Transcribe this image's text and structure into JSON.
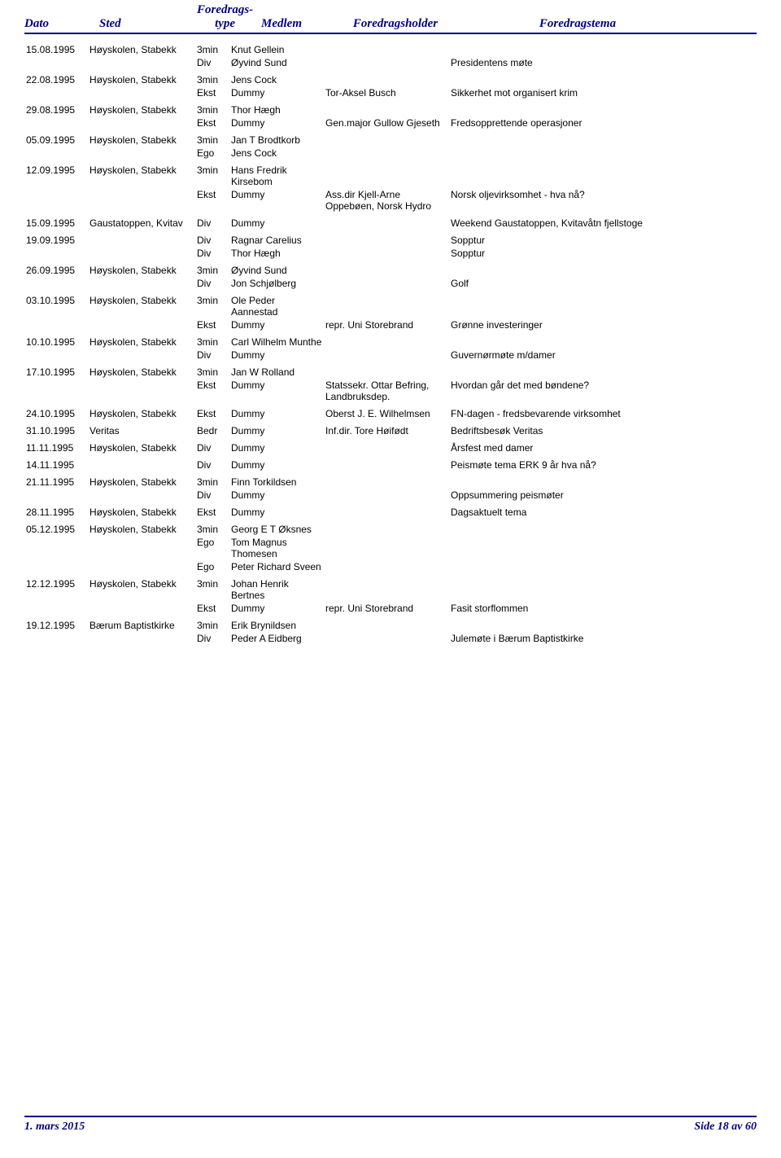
{
  "header": {
    "dato": "Dato",
    "sted": "Sted",
    "type_line1": "Foredrags-",
    "type_line2": "type",
    "medlem": "Medlem",
    "holder": "Foredragsholder",
    "tema": "Foredragstema"
  },
  "rows": [
    {
      "group": true,
      "dato": "15.08.1995",
      "sted": "Høyskolen, Stabekk",
      "type": "3min",
      "medlem": "Knut Gellein",
      "holder": "",
      "tema": ""
    },
    {
      "dato": "",
      "sted": "",
      "type": "Div",
      "medlem": "Øyvind Sund",
      "holder": "",
      "tema": "Presidentens møte"
    },
    {
      "group": true,
      "dato": "22.08.1995",
      "sted": "Høyskolen, Stabekk",
      "type": "3min",
      "medlem": "Jens Cock",
      "holder": "",
      "tema": ""
    },
    {
      "dato": "",
      "sted": "",
      "type": "Ekst",
      "medlem": "Dummy",
      "holder": "Tor-Aksel Busch",
      "tema": "Sikkerhet mot organisert krim"
    },
    {
      "group": true,
      "dato": "29.08.1995",
      "sted": "Høyskolen, Stabekk",
      "type": "3min",
      "medlem": "Thor Hægh",
      "holder": "",
      "tema": ""
    },
    {
      "dato": "",
      "sted": "",
      "type": "Ekst",
      "medlem": "Dummy",
      "holder": "Gen.major Gullow Gjeseth",
      "tema": "Fredsopprettende operasjoner"
    },
    {
      "group": true,
      "dato": "05.09.1995",
      "sted": "Høyskolen, Stabekk",
      "type": "3min",
      "medlem": "Jan T Brodtkorb",
      "holder": "",
      "tema": ""
    },
    {
      "dato": "",
      "sted": "",
      "type": "Ego",
      "medlem": "Jens Cock",
      "holder": "",
      "tema": ""
    },
    {
      "group": true,
      "dato": "12.09.1995",
      "sted": "Høyskolen, Stabekk",
      "type": "3min",
      "medlem": "Hans Fredrik Kirsebom",
      "holder": "",
      "tema": ""
    },
    {
      "dato": "",
      "sted": "",
      "type": "Ekst",
      "medlem": "Dummy",
      "holder": "Ass.dir Kjell-Arne Oppebøen, Norsk Hydro",
      "tema": "Norsk oljevirksomhet - hva nå?"
    },
    {
      "group": true,
      "dato": "15.09.1995",
      "sted": "Gaustatoppen, Kvitav",
      "type": "Div",
      "medlem": "Dummy",
      "holder": "",
      "tema": "Weekend Gaustatoppen, Kvitavåtn fjellstoge"
    },
    {
      "group": true,
      "dato": "19.09.1995",
      "sted": "",
      "type": "Div",
      "medlem": "Ragnar Carelius",
      "holder": "",
      "tema": "Sopptur"
    },
    {
      "dato": "",
      "sted": "",
      "type": "Div",
      "medlem": "Thor Hægh",
      "holder": "",
      "tema": "Sopptur"
    },
    {
      "group": true,
      "dato": "26.09.1995",
      "sted": "Høyskolen, Stabekk",
      "type": "3min",
      "medlem": "Øyvind Sund",
      "holder": "",
      "tema": ""
    },
    {
      "dato": "",
      "sted": "",
      "type": "Div",
      "medlem": "Jon Schjølberg",
      "holder": "",
      "tema": "Golf"
    },
    {
      "group": true,
      "dato": "03.10.1995",
      "sted": "Høyskolen, Stabekk",
      "type": "3min",
      "medlem": "Ole Peder Aannestad",
      "holder": "",
      "tema": ""
    },
    {
      "dato": "",
      "sted": "",
      "type": "Ekst",
      "medlem": "Dummy",
      "holder": "repr. Uni Storebrand",
      "tema": "Grønne investeringer"
    },
    {
      "group": true,
      "dato": "10.10.1995",
      "sted": "Høyskolen, Stabekk",
      "type": "3min",
      "medlem": "Carl Wilhelm Munthe",
      "holder": "",
      "tema": ""
    },
    {
      "dato": "",
      "sted": "",
      "type": "Div",
      "medlem": "Dummy",
      "holder": "",
      "tema": "Guvernørmøte m/damer"
    },
    {
      "group": true,
      "dato": "17.10.1995",
      "sted": "Høyskolen, Stabekk",
      "type": "3min",
      "medlem": "Jan W Rolland",
      "holder": "",
      "tema": ""
    },
    {
      "dato": "",
      "sted": "",
      "type": "Ekst",
      "medlem": "Dummy",
      "holder": "Statssekr. Ottar Befring, Landbruksdep.",
      "tema": "Hvordan går det med bøndene?"
    },
    {
      "group": true,
      "dato": "24.10.1995",
      "sted": "Høyskolen, Stabekk",
      "type": "Ekst",
      "medlem": "Dummy",
      "holder": "Oberst J. E. Wilhelmsen",
      "tema": "FN-dagen - fredsbevarende virksomhet"
    },
    {
      "group": true,
      "dato": "31.10.1995",
      "sted": "Veritas",
      "type": "Bedr",
      "medlem": "Dummy",
      "holder": "Inf.dir. Tore Høifødt",
      "tema": "Bedriftsbesøk Veritas"
    },
    {
      "group": true,
      "dato": "11.11.1995",
      "sted": "Høyskolen, Stabekk",
      "type": "Div",
      "medlem": "Dummy",
      "holder": "",
      "tema": "Årsfest med damer"
    },
    {
      "group": true,
      "dato": "14.11.1995",
      "sted": "",
      "type": "Div",
      "medlem": "Dummy",
      "holder": "",
      "tema": "Peismøte tema ERK 9 år hva nå?"
    },
    {
      "group": true,
      "dato": "21.11.1995",
      "sted": "Høyskolen, Stabekk",
      "type": "3min",
      "medlem": "Finn Torkildsen",
      "holder": "",
      "tema": ""
    },
    {
      "dato": "",
      "sted": "",
      "type": "Div",
      "medlem": "Dummy",
      "holder": "",
      "tema": "Oppsummering peismøter"
    },
    {
      "group": true,
      "dato": "28.11.1995",
      "sted": "Høyskolen, Stabekk",
      "type": "Ekst",
      "medlem": "Dummy",
      "holder": "",
      "tema": "Dagsaktuelt tema"
    },
    {
      "group": true,
      "dato": "05.12.1995",
      "sted": "Høyskolen, Stabekk",
      "type": "3min",
      "medlem": "Georg E T Øksnes",
      "holder": "",
      "tema": ""
    },
    {
      "dato": "",
      "sted": "",
      "type": "Ego",
      "medlem": "Tom Magnus Thomesen",
      "holder": "",
      "tema": ""
    },
    {
      "dato": "",
      "sted": "",
      "type": "Ego",
      "medlem": "Peter Richard Sveen",
      "holder": "",
      "tema": ""
    },
    {
      "group": true,
      "dato": "12.12.1995",
      "sted": "Høyskolen, Stabekk",
      "type": "3min",
      "medlem": "Johan Henrik Bertnes",
      "holder": "",
      "tema": ""
    },
    {
      "dato": "",
      "sted": "",
      "type": "Ekst",
      "medlem": "Dummy",
      "holder": "repr. Uni Storebrand",
      "tema": "Fasit storflommen"
    },
    {
      "group": true,
      "dato": "19.12.1995",
      "sted": "Bærum Baptistkirke",
      "type": "3min",
      "medlem": "Erik Brynildsen",
      "holder": "",
      "tema": ""
    },
    {
      "dato": "",
      "sted": "",
      "type": "Div",
      "medlem": "Peder A Eidberg",
      "holder": "",
      "tema": "Julemøte i Bærum Baptistkirke"
    }
  ],
  "footer": {
    "left": "1. mars 2015",
    "right": "Side 18 av 60"
  },
  "style": {
    "accent_color": "#000080",
    "body_font": "Arial",
    "header_font": "Georgia italic",
    "font_size_body": 12,
    "font_size_header": 15
  }
}
